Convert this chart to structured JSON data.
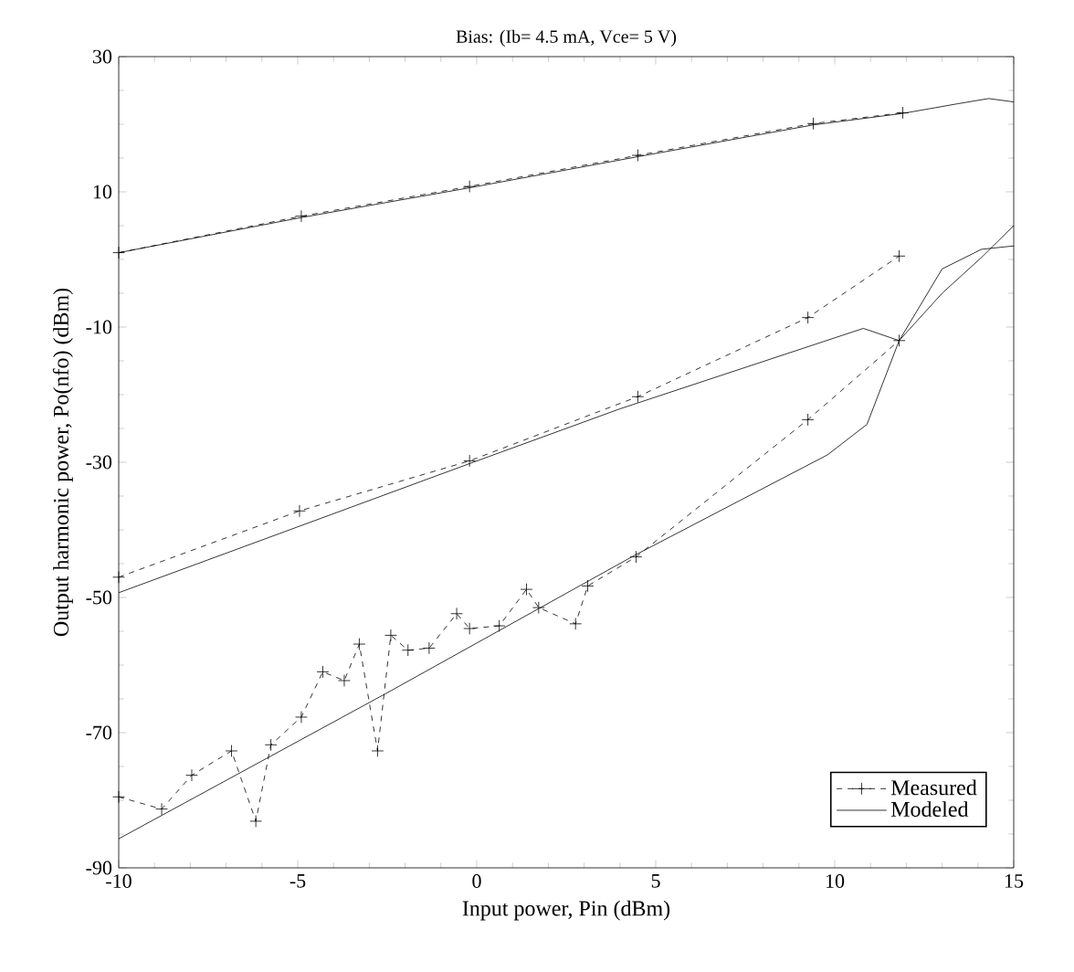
{
  "chart_data": {
    "type": "line",
    "title": "Bias: (Ib= 4.5 mA, Vce= 5 V)",
    "xlabel": "Input power, Pin (dBm)",
    "ylabel": "Output harmonic power, Po(nfo)  (dBm)",
    "xlim": [
      -10,
      15
    ],
    "xticks": [
      -10,
      -5,
      0,
      5,
      10,
      15
    ],
    "ylim": [
      -90,
      30
    ],
    "yticks": [
      -90,
      -70,
      -50,
      -30,
      -10,
      10,
      30
    ],
    "legend": "bottom right",
    "series": [
      {
        "name": "Measured",
        "color": "#000000",
        "line_style": "dashed",
        "marker": "cross",
        "x": [
          -10,
          -4.9,
          -0.2,
          4.5,
          9.4,
          11.9
        ],
        "values": [
          1,
          6.4,
          10.8,
          15.4,
          20.1,
          21.7
        ]
      },
      {
        "name": "Modeled",
        "color": "#000000",
        "line_style": "solid",
        "marker": "none",
        "x": [
          -10,
          -4.9,
          -0.2,
          4.5,
          9.4,
          11.9,
          13.4,
          14.3,
          15
        ],
        "values": [
          1,
          6.2,
          10.6,
          15.2,
          19.9,
          21.6,
          23,
          23.8,
          23.3
        ]
      },
      {
        "color": "#000000",
        "line_style": "dashed",
        "marker": "cross",
        "x": [
          -10,
          -4.95,
          -0.2,
          4.5,
          9.25,
          11.8
        ],
        "values": [
          -47,
          -37.2,
          -29.8,
          -20.3,
          -8.6,
          0.5
        ]
      },
      {
        "color": "#000000",
        "line_style": "solid",
        "marker": "none",
        "x": [
          -10,
          -0.2,
          4,
          10.8,
          11.8,
          13,
          14.1,
          15
        ],
        "values": [
          -49.3,
          -30.2,
          -22.1,
          -10.2,
          -12,
          -1.4,
          1.5,
          2
        ]
      },
      {
        "color": "#000000",
        "line_style": "dashed",
        "marker": "cross",
        "x": [
          -10,
          -8.8,
          -7.96,
          -6.85,
          -6.17,
          -5.75,
          -4.9,
          -4.3,
          -3.7,
          -3.28,
          -2.77,
          -2.4,
          -1.92,
          -1.33,
          -0.56,
          -0.2,
          0.63,
          1.39,
          1.73,
          2.76,
          3.1,
          4.45,
          9.25,
          11.8
        ],
        "values": [
          -79.5,
          -81.3,
          -76.3,
          -72.7,
          -83.1,
          -71.8,
          -67.7,
          -61,
          -62.3,
          -56.9,
          -72.7,
          -55.6,
          -57.8,
          -57.5,
          -52.4,
          -54.6,
          -54.2,
          -48.8,
          -51.5,
          -53.9,
          -48.3,
          -44,
          -23.7,
          -12
        ]
      },
      {
        "color": "#000000",
        "line_style": "solid",
        "marker": "none",
        "x": [
          -10,
          -2.5,
          4.4,
          9.8,
          10.9,
          11.8,
          13,
          14.1,
          15
        ],
        "values": [
          -85.7,
          -64.1,
          -43.8,
          -28.9,
          -24.4,
          -12,
          -5,
          0.3,
          5
        ]
      }
    ]
  }
}
